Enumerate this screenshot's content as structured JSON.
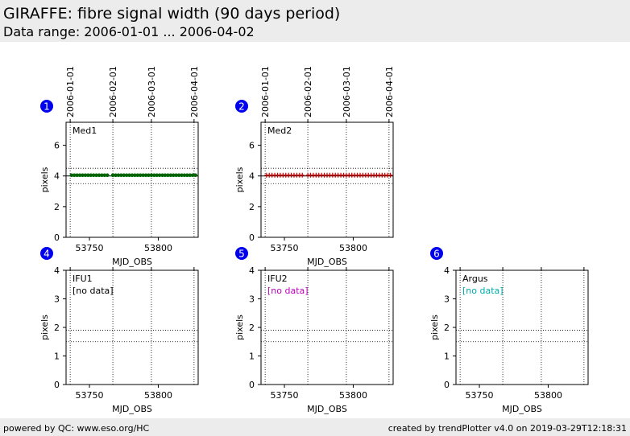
{
  "header": {
    "title": "GIRAFFE: fibre signal width (90 days period)",
    "subtitle": "Data range: 2006-01-01 ... 2006-04-02"
  },
  "footer": {
    "left": "powered by QC: www.eso.org/HC",
    "right": "created by trendPlotter v4.0 on 2019-03-29T12:18:31"
  },
  "colors": {
    "badge": "#0000ee",
    "med1": "#006400",
    "med2": "#cc0000",
    "ifu2_text": "#bb00bb",
    "argus_text": "#00aaaa"
  },
  "chart_data": [
    {
      "type": "scatter",
      "badge": "1",
      "label": "Med1",
      "color": "#006400",
      "xlabel": "MJD_OBS",
      "ylabel": "pixels",
      "xlim": [
        53733,
        53829
      ],
      "xticks": [
        53750,
        53800
      ],
      "ylim": [
        0,
        7.5
      ],
      "yticks": [
        0,
        2,
        4,
        6
      ],
      "date_ticks": [
        [
          "2006-01-01",
          53736
        ],
        [
          "2006-02-01",
          53767
        ],
        [
          "2006-03-01",
          53795
        ],
        [
          "2006-04-01",
          53826
        ]
      ],
      "ref_lines": [
        4.0
      ],
      "limit_lines": [
        3.5,
        4.5
      ],
      "marker": "dot",
      "x": [
        53737,
        53739,
        53741,
        53743,
        53745,
        53747,
        53749,
        53751,
        53753,
        53755,
        53757,
        53759,
        53761,
        53763,
        53767,
        53769,
        53771,
        53773,
        53775,
        53777,
        53779,
        53781,
        53783,
        53785,
        53787,
        53789,
        53791,
        53793,
        53795,
        53797,
        53799,
        53801,
        53803,
        53805,
        53807,
        53809,
        53811,
        53813,
        53815,
        53817,
        53819,
        53821,
        53823,
        53825,
        53827
      ],
      "y": [
        4.05,
        4.05,
        4.05,
        4.05,
        4.05,
        4.05,
        4.05,
        4.05,
        4.05,
        4.05,
        4.05,
        4.05,
        4.05,
        4.05,
        4.05,
        4.05,
        4.05,
        4.05,
        4.05,
        4.05,
        4.05,
        4.05,
        4.05,
        4.05,
        4.05,
        4.05,
        4.05,
        4.05,
        4.05,
        4.05,
        4.05,
        4.05,
        4.05,
        4.05,
        4.05,
        4.05,
        4.05,
        4.05,
        4.05,
        4.05,
        4.05,
        4.05,
        4.05,
        4.05,
        4.05
      ],
      "no_data": ""
    },
    {
      "type": "scatter",
      "badge": "2",
      "label": "Med2",
      "color": "#cc0000",
      "xlabel": "MJD_OBS",
      "ylabel": "pixels",
      "xlim": [
        53733,
        53829
      ],
      "xticks": [
        53750,
        53800
      ],
      "ylim": [
        0,
        7.5
      ],
      "yticks": [
        0,
        2,
        4,
        6
      ],
      "date_ticks": [
        [
          "2006-01-01",
          53736
        ],
        [
          "2006-02-01",
          53767
        ],
        [
          "2006-03-01",
          53795
        ],
        [
          "2006-04-01",
          53826
        ]
      ],
      "ref_lines": [
        4.0
      ],
      "limit_lines": [
        3.5,
        4.5
      ],
      "marker": "plus",
      "x": [
        53737,
        53739,
        53741,
        53743,
        53745,
        53747,
        53749,
        53751,
        53753,
        53755,
        53757,
        53759,
        53761,
        53763,
        53767,
        53769,
        53771,
        53773,
        53775,
        53777,
        53779,
        53781,
        53783,
        53785,
        53787,
        53789,
        53791,
        53793,
        53795,
        53797,
        53799,
        53801,
        53803,
        53805,
        53807,
        53809,
        53811,
        53813,
        53815,
        53817,
        53819,
        53821,
        53823,
        53825,
        53827
      ],
      "y": [
        4.05,
        4.05,
        4.05,
        4.05,
        4.05,
        4.05,
        4.05,
        4.05,
        4.05,
        4.05,
        4.05,
        4.05,
        4.05,
        4.05,
        4.05,
        4.05,
        4.05,
        4.05,
        4.05,
        4.05,
        4.05,
        4.05,
        4.05,
        4.05,
        4.05,
        4.05,
        4.05,
        4.05,
        4.05,
        4.05,
        4.05,
        4.05,
        4.05,
        4.05,
        4.05,
        4.05,
        4.05,
        4.05,
        4.05,
        4.05,
        4.05,
        4.05,
        4.05,
        4.05,
        4.05
      ],
      "no_data": ""
    },
    {
      "type": "scatter",
      "badge": "4",
      "label": "IFU1",
      "color": "#000000",
      "xlabel": "MJD_OBS",
      "ylabel": "pixels",
      "xlim": [
        53733,
        53829
      ],
      "xticks": [
        53750,
        53800
      ],
      "ylim": [
        0,
        4
      ],
      "yticks": [
        0,
        1,
        2,
        3,
        4
      ],
      "date_ticks": [
        [
          "",
          53736
        ],
        [
          "",
          53767
        ],
        [
          "",
          53795
        ],
        [
          "",
          53826
        ]
      ],
      "ref_lines": [],
      "limit_lines": [
        1.5,
        1.9
      ],
      "marker": "none",
      "x": [],
      "y": [],
      "no_data": "[no data]",
      "no_data_color": "#000000"
    },
    {
      "type": "scatter",
      "badge": "5",
      "label": "IFU2",
      "color": "#000000",
      "xlabel": "MJD_OBS",
      "ylabel": "pixels",
      "xlim": [
        53733,
        53829
      ],
      "xticks": [
        53750,
        53800
      ],
      "ylim": [
        0,
        4
      ],
      "yticks": [
        0,
        1,
        2,
        3,
        4
      ],
      "date_ticks": [
        [
          "",
          53736
        ],
        [
          "",
          53767
        ],
        [
          "",
          53795
        ],
        [
          "",
          53826
        ]
      ],
      "ref_lines": [],
      "limit_lines": [
        1.5,
        1.9
      ],
      "marker": "none",
      "x": [],
      "y": [],
      "no_data": "[no data]",
      "no_data_color": "#bb00bb"
    },
    {
      "type": "scatter",
      "badge": "6",
      "label": "Argus",
      "color": "#000000",
      "xlabel": "MJD_OBS",
      "ylabel": "pixels",
      "xlim": [
        53733,
        53829
      ],
      "xticks": [
        53750,
        53800
      ],
      "ylim": [
        0,
        4
      ],
      "yticks": [
        0,
        1,
        2,
        3,
        4
      ],
      "date_ticks": [
        [
          "",
          53736
        ],
        [
          "",
          53767
        ],
        [
          "",
          53795
        ],
        [
          "",
          53826
        ]
      ],
      "ref_lines": [],
      "limit_lines": [
        1.5,
        1.9
      ],
      "marker": "none",
      "x": [],
      "y": [],
      "no_data": "[no data]",
      "no_data_color": "#00aaaa"
    }
  ]
}
